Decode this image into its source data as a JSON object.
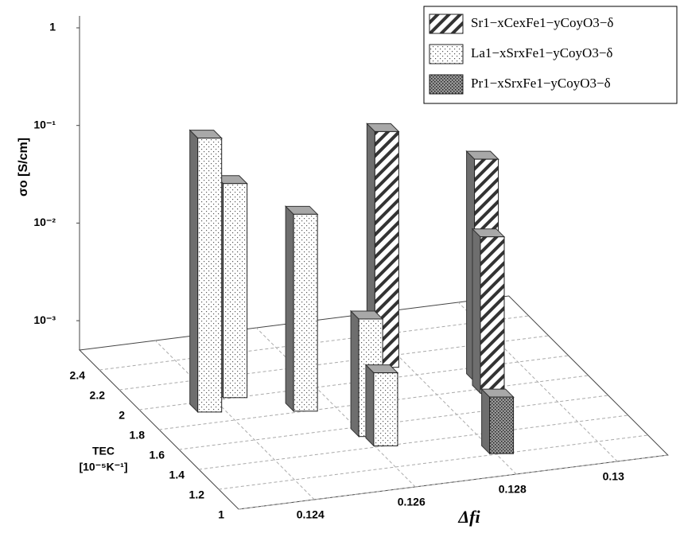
{
  "chart_data": {
    "type": "bar3d",
    "xlabel": "Δfi",
    "ylabel": [
      "TEC",
      "[10⁻⁵K⁻¹]"
    ],
    "zlabel": "σo [S/cm]",
    "xlim": [
      0.1225,
      0.131
    ],
    "xticks": [
      0.124,
      0.126,
      0.128,
      0.13
    ],
    "ylim": [
      1,
      2.6
    ],
    "yticks": [
      1,
      1.2,
      1.4,
      1.6,
      1.8,
      2,
      2.2,
      2.4
    ],
    "zlim": [
      0.0005,
      1
    ],
    "zlog": true,
    "zticks": [
      {
        "value": 0.001,
        "label": "10⁻³"
      },
      {
        "value": 0.01,
        "label": "10⁻²"
      },
      {
        "value": 0.1,
        "label": "10⁻¹"
      },
      1
    ],
    "grid": true,
    "series": [
      {
        "name": "Sr1−xCexFe1−yCoyO3−δ",
        "pattern": "hatch",
        "color": "#ffffff",
        "x": [
          0.1276,
          0.1291,
          0.129
        ],
        "y": [
          2.1,
          1.86,
          1.75
        ],
        "values": [
          0.13,
          0.095,
          0.02
        ]
      },
      {
        "name": "La1−xSrxFe1−yCoyO3−δ",
        "pattern": "dots",
        "color": "#ffffff",
        "x": [
          0.1237,
          0.1244,
          0.1254,
          0.1261,
          0.1262
        ],
        "y": [
          1.9,
          2.0,
          1.8,
          1.5,
          1.4
        ],
        "values": [
          0.32,
          0.078,
          0.052,
          0.008,
          0.0028
        ]
      },
      {
        "name": "Pr1−xSrxFe1−yCoyO3−δ",
        "pattern": "densedots",
        "color": "#8a8a8a",
        "x": [
          0.1281
        ],
        "y": [
          1.2
        ],
        "values": [
          0.0019
        ]
      }
    ]
  }
}
